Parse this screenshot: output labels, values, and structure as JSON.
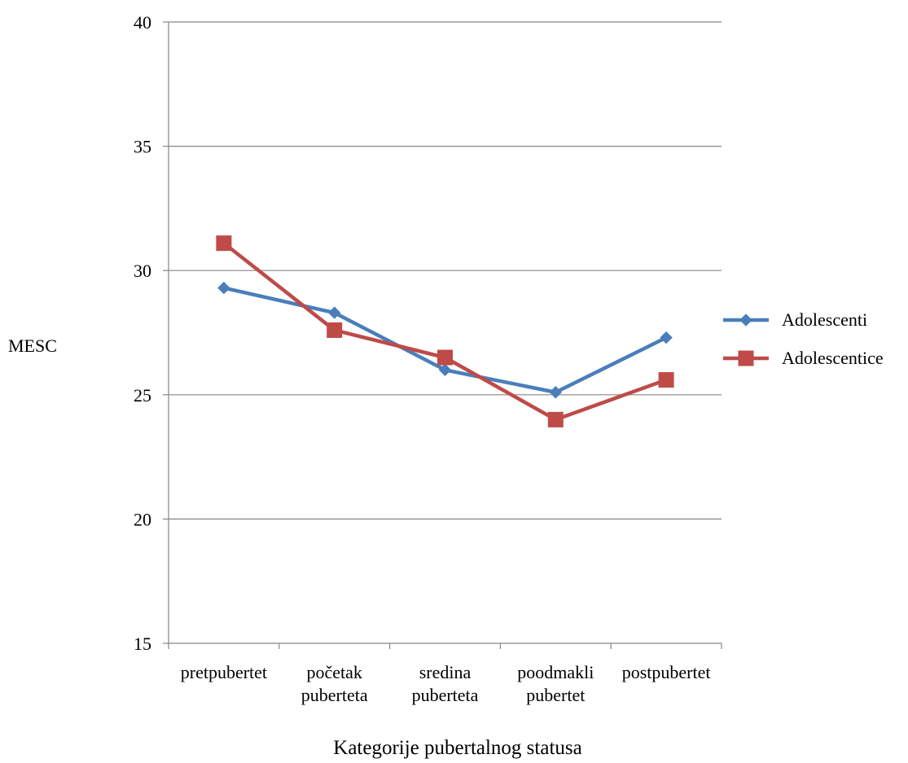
{
  "chart_data": {
    "type": "line",
    "title": "",
    "xlabel": "Kategorije pubertalnog statusa",
    "ylabel": "MESC",
    "ylim": [
      15,
      40
    ],
    "yticks": [
      15,
      20,
      25,
      30,
      35,
      40
    ],
    "grid": true,
    "legend_position": "right",
    "categories": [
      [
        "pretpubertet"
      ],
      [
        "početak",
        "puberteta"
      ],
      [
        "sredina",
        "puberteta"
      ],
      [
        "poodmakli",
        "pubertet"
      ],
      [
        "postpubertet"
      ]
    ],
    "series": [
      {
        "name": "Adolescenti",
        "color": "#4a7ebb",
        "marker": "diamond",
        "values": [
          29.3,
          28.3,
          26.0,
          25.1,
          27.3
        ]
      },
      {
        "name": "Adolescentice",
        "color": "#be4b48",
        "marker": "square",
        "values": [
          31.1,
          27.6,
          26.5,
          24.0,
          25.6
        ]
      }
    ]
  }
}
